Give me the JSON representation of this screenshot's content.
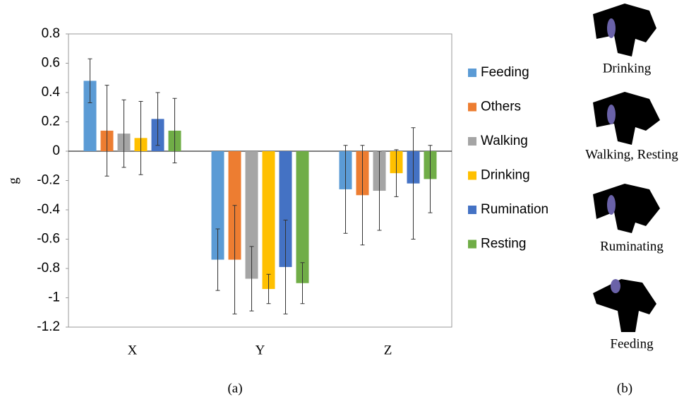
{
  "chart_data": {
    "type": "bar",
    "ylabel": "g",
    "categories": [
      "X",
      "Y",
      "Z"
    ],
    "ylim": [
      -1.2,
      0.8
    ],
    "yticks": [
      0.8,
      0.6,
      0.4,
      0.2,
      0,
      -0.2,
      -0.4,
      -0.6,
      -0.8,
      -1,
      -1.2
    ],
    "series": [
      {
        "name": "Feeding",
        "color": "#5b9bd5",
        "values": [
          0.48,
          -0.74,
          -0.26
        ],
        "errors": [
          0.15,
          0.21,
          0.3
        ]
      },
      {
        "name": "Others",
        "color": "#ed7d31",
        "values": [
          0.14,
          -0.74,
          -0.3
        ],
        "errors": [
          0.31,
          0.37,
          0.34
        ]
      },
      {
        "name": "Walking",
        "color": "#a5a5a5",
        "values": [
          0.12,
          -0.87,
          -0.27
        ],
        "errors": [
          0.23,
          0.22,
          0.27
        ]
      },
      {
        "name": "Drinking",
        "color": "#ffc000",
        "values": [
          0.09,
          -0.94,
          -0.15
        ],
        "errors": [
          0.25,
          0.1,
          0.16
        ]
      },
      {
        "name": "Rumination",
        "color": "#4472c4",
        "values": [
          0.22,
          -0.79,
          -0.22
        ],
        "errors": [
          0.18,
          0.32,
          0.38
        ]
      },
      {
        "name": "Resting",
        "color": "#70ad47",
        "values": [
          0.14,
          -0.9,
          -0.19
        ],
        "errors": [
          0.22,
          0.14,
          0.23
        ]
      }
    ]
  },
  "captions": [
    "(a)",
    "(b)"
  ],
  "panel_b": {
    "labels": [
      "Drinking",
      "Walking, Resting",
      "Ruminating",
      "Feeding"
    ]
  }
}
